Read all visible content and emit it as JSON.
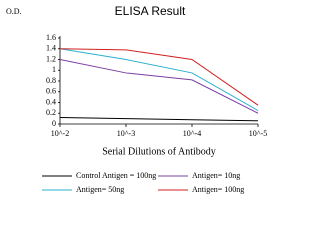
{
  "chart_data": {
    "type": "line",
    "title": "ELISA Result",
    "y_label": "O.D.",
    "x_label": "Serial Dilutions of Antibody",
    "categories": [
      "10^-2",
      "10^-3",
      "10^-4",
      "10^-5"
    ],
    "series": [
      {
        "name": "Control Antigen = 100ng",
        "color": "#000000",
        "values": [
          0.12,
          0.1,
          0.08,
          0.06
        ]
      },
      {
        "name": "Antigen= 10ng",
        "color": "#7b3fa0",
        "values": [
          1.2,
          0.95,
          0.82,
          0.2
        ]
      },
      {
        "name": "Antigen= 50ng",
        "color": "#2ab0d0",
        "values": [
          1.4,
          1.2,
          0.95,
          0.25
        ]
      },
      {
        "name": "Antigen= 100ng",
        "color": "#d02020",
        "values": [
          1.4,
          1.38,
          1.2,
          0.35
        ]
      }
    ],
    "ylim": [
      0,
      1.6
    ],
    "yticks": [
      0,
      0.2,
      0.4,
      0.6,
      0.8,
      1,
      1.2,
      1.4,
      1.6
    ],
    "grid": false
  }
}
